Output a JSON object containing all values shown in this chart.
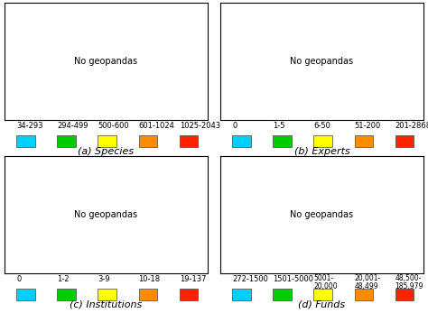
{
  "panels": [
    {
      "label": "(a) Species",
      "legend_labels": [
        "34-293",
        "294-499",
        "500-600",
        "601-1024",
        "1025-2043"
      ],
      "legend_colors": [
        "#00CFFF",
        "#00CC00",
        "#FFFF00",
        "#FF8C00",
        "#FF2200"
      ]
    },
    {
      "label": "(b) Experts",
      "legend_labels": [
        "0",
        "1-5",
        "6-50",
        "51-200",
        "201-2868"
      ],
      "legend_colors": [
        "#00CFFF",
        "#00CC00",
        "#FFFF00",
        "#FF8C00",
        "#FF2200"
      ]
    },
    {
      "label": "(c) Institutions",
      "legend_labels": [
        "0",
        "1-2",
        "3-9",
        "10-18",
        "19-137"
      ],
      "legend_colors": [
        "#00CFFF",
        "#00CC00",
        "#FFFF00",
        "#FF8C00",
        "#FF2200"
      ]
    },
    {
      "label": "(d) Funds",
      "legend_labels": [
        "272-1500",
        "1501-5000",
        "5001-\n20,000",
        "20,001-\n48,499",
        "48,500-\n185,979"
      ],
      "legend_colors": [
        "#00CFFF",
        "#00CC00",
        "#FFFF00",
        "#FF8C00",
        "#FF2200"
      ]
    }
  ],
  "country_colors": {
    "a": {
      "USA": "#FF2200",
      "CAN": "#FF8C00",
      "MEX": "#FF2200",
      "BRA": "#FF2200",
      "ARG": "#FF2200",
      "COL": "#FF2200",
      "PER": "#FF2200",
      "CHL": "#FF2200",
      "VEN": "#FF8C00",
      "BOL": "#FF2200",
      "ECU": "#FF2200",
      "PRY": "#FF8C00",
      "URY": "#FF8C00",
      "GUY": "#FF8C00",
      "SUR": "#FF8C00",
      "GBR": "#FF8C00",
      "FRA": "#FF8C00",
      "DEU": "#FFFF00",
      "ESP": "#FF8C00",
      "ITA": "#FFFF00",
      "POL": "#00CC00",
      "SWE": "#00CC00",
      "NOR": "#00CC00",
      "FIN": "#00CC00",
      "RUS": "#FF8C00",
      "UKR": "#00CC00",
      "ROU": "#00CC00",
      "BLR": "#00CC00",
      "CZE": "#00CC00",
      "AUT": "#00CC00",
      "CHE": "#00CC00",
      "NLD": "#FFFF00",
      "BEL": "#FFFF00",
      "DNK": "#00CC00",
      "PRT": "#FF8C00",
      "GRC": "#00CC00",
      "HUN": "#00CC00",
      "SVK": "#00CC00",
      "BGR": "#00CC00",
      "HRV": "#00CC00",
      "SRB": "#00CC00",
      "BIH": "#00CC00",
      "MKD": "#00CC00",
      "ALB": "#00CC00",
      "SVN": "#00CC00",
      "MDA": "#00CC00",
      "LTU": "#00CC00",
      "LVA": "#00CC00",
      "EST": "#00CC00",
      "IRL": "#00CC00",
      "TUR": "#FFFF00",
      "IRN": "#FF8C00",
      "IRQ": "#FF8C00",
      "SAU": "#FF8C00",
      "YEM": "#FF8C00",
      "SYR": "#FF8C00",
      "JOR": "#FFFF00",
      "ISR": "#FFFF00",
      "LBN": "#FFFF00",
      "ARE": "#FFFF00",
      "KWT": "#FFFF00",
      "QAT": "#FFFF00",
      "OMN": "#FFFF00",
      "AFG": "#FF8C00",
      "PAK": "#FF8C00",
      "IND": "#00CC00",
      "BGD": "#FFFF00",
      "LKA": "#FFFF00",
      "NPL": "#FFFF00",
      "BTN": "#FFFF00",
      "CHN": "#FF2200",
      "JPN": "#FF2200",
      "KOR": "#FF2200",
      "PRK": "#FF8C00",
      "MNG": "#FF8C00",
      "KAZ": "#FF8C00",
      "UZB": "#FF8C00",
      "TKM": "#FF8C00",
      "KGZ": "#FF8C00",
      "TJK": "#FF8C00",
      "AZE": "#FF8C00",
      "GEO": "#FFFF00",
      "ARM": "#FFFF00",
      "IDN": "#FF2200",
      "MYS": "#FF8C00",
      "PHL": "#FF8C00",
      "THA": "#FF8C00",
      "VNM": "#FF8C00",
      "MMR": "#FF8C00",
      "KHM": "#FF8C00",
      "LAO": "#FF8C00",
      "SGP": "#FFFF00",
      "BRN": "#FFFF00",
      "TLS": "#FFFF00",
      "NGA": "#FF8C00",
      "ZAF": "#FF2200",
      "ETH": "#FF8C00",
      "EGY": "#FF8C00",
      "TZA": "#FF8C00",
      "KEN": "#FF8C00",
      "COD": "#FF8C00",
      "AGO": "#FF8C00",
      "MOZ": "#FF8C00",
      "GHA": "#FF8C00",
      "CMR": "#FF8C00",
      "MDG": "#FF8C00",
      "CIV": "#FF8C00",
      "NER": "#FF8C00",
      "BFA": "#FF8C00",
      "MLI": "#FF8C00",
      "SEN": "#FF8C00",
      "SDN": "#FF8C00",
      "SSD": "#FF8C00",
      "TCD": "#FF8C00",
      "CAF": "#FF8C00",
      "COG": "#FF8C00",
      "GAB": "#FF8C00",
      "GNQ": "#FF8C00",
      "ZMB": "#FF8C00",
      "ZWE": "#FF8C00",
      "BWA": "#FF8C00",
      "NAM": "#FF8C00",
      "MWI": "#FFFF00",
      "LSO": "#FFFF00",
      "SWZ": "#FFFF00",
      "RWA": "#FFFF00",
      "BDI": "#FFFF00",
      "UGA": "#FFFF00",
      "TGO": "#FFFF00",
      "BEN": "#FFFF00",
      "GIN": "#FFFF00",
      "SLE": "#FFFF00",
      "LBR": "#FFFF00",
      "DJI": "#FFFF00",
      "SOM": "#FFFF00",
      "ERI": "#FFFF00",
      "LBY": "#FF8C00",
      "TUN": "#FF8C00",
      "DZA": "#FF8C00",
      "MAR": "#FF8C00",
      "MRT": "#FF8C00",
      "AUS": "#FF8C00",
      "NZL": "#00CC00",
      "GRL": "#00CFFF"
    },
    "b": {
      "USA": "#FF2200",
      "CAN": "#FF2200",
      "MEX": "#FF8C00",
      "BRA": "#FF2200",
      "ARG": "#FF8C00",
      "COL": "#FF8C00",
      "PER": "#FF8C00",
      "CHL": "#FF2200",
      "VEN": "#FF8C00",
      "BOL": "#FF8C00",
      "ECU": "#FF8C00",
      "PRY": "#FFFF00",
      "URY": "#FFFF00",
      "GUY": "#FFFF00",
      "SUR": "#FFFF00",
      "GBR": "#FF2200",
      "FRA": "#FF2200",
      "DEU": "#FF2200",
      "ESP": "#FF2200",
      "ITA": "#FF2200",
      "POL": "#FF2200",
      "SWE": "#FF2200",
      "NOR": "#FF2200",
      "FIN": "#FF2200",
      "RUS": "#FF2200",
      "UKR": "#FF8C00",
      "ROU": "#FF8C00",
      "BLR": "#FF8C00",
      "CZE": "#FF8C00",
      "AUT": "#FF2200",
      "CHE": "#FF2200",
      "NLD": "#FF2200",
      "BEL": "#FF2200",
      "DNK": "#FF2200",
      "PRT": "#FF2200",
      "GRC": "#FF8C00",
      "HUN": "#FF8C00",
      "SVK": "#FF8C00",
      "BGR": "#FF8C00",
      "HRV": "#FF8C00",
      "SRB": "#FF8C00",
      "BIH": "#FFFF00",
      "MDA": "#FFFF00",
      "TUR": "#FF8C00",
      "IRN": "#FF8C00",
      "IRQ": "#FFFF00",
      "SAU": "#FF8C00",
      "YEM": "#FFFF00",
      "SYR": "#FFFF00",
      "JOR": "#FFFF00",
      "ISR": "#FF8C00",
      "AFG": "#FFFF00",
      "PAK": "#FFFF00",
      "IND": "#FF2200",
      "BGD": "#FFFF00",
      "LKA": "#FFFF00",
      "NPL": "#FFFF00",
      "CHN": "#FF2200",
      "JPN": "#FF2200",
      "KOR": "#FF2200",
      "PRK": "#FFFF00",
      "MNG": "#FFFF00",
      "KAZ": "#FF8C00",
      "UZB": "#FFFF00",
      "TKM": "#FFFF00",
      "IDN": "#FF2200",
      "MYS": "#FF8C00",
      "PHL": "#FF8C00",
      "THA": "#FF8C00",
      "VNM": "#FF8C00",
      "MMR": "#FFFF00",
      "KHM": "#FFFF00",
      "NGA": "#FF8C00",
      "ZAF": "#FF2200",
      "ETH": "#FFFF00",
      "EGY": "#FF8C00",
      "TZA": "#FFFF00",
      "KEN": "#FFFF00",
      "COD": "#FFFF00",
      "AGO": "#FFFF00",
      "MOZ": "#FFFF00",
      "GHA": "#FFFF00",
      "CMR": "#FFFF00",
      "MDG": "#FFFF00",
      "CIV": "#FFFF00",
      "NER": "#FFFF00",
      "BFA": "#FFFF00",
      "MLI": "#FFFF00",
      "SEN": "#00CC00",
      "SDN": "#FFFF00",
      "SSD": "#FFFF00",
      "TCD": "#FFFF00",
      "ZMB": "#FFFF00",
      "ZWE": "#FFFF00",
      "BWA": "#FFFF00",
      "NAM": "#FFFF00",
      "LBY": "#FFFF00",
      "TUN": "#FFFF00",
      "DZA": "#FFFF00",
      "MAR": "#FFFF00",
      "AUS": "#FF2200",
      "NZL": "#FF2200",
      "GRL": "#00CFFF"
    },
    "c": {
      "USA": "#FF2200",
      "CAN": "#FF2200",
      "MEX": "#FF8C00",
      "BRA": "#FF8C00",
      "ARG": "#FF8C00",
      "COL": "#FF2200",
      "PER": "#FFFF00",
      "CHL": "#FF2200",
      "VEN": "#FF8C00",
      "BOL": "#FFFF00",
      "ECU": "#FFFF00",
      "PRY": "#00CC00",
      "URY": "#00CC00",
      "GUY": "#00CC00",
      "GBR": "#FF2200",
      "FRA": "#FF2200",
      "DEU": "#FF2200",
      "ESP": "#FF2200",
      "ITA": "#FF2200",
      "POL": "#FF8C00",
      "SWE": "#FF2200",
      "NOR": "#FF2200",
      "FIN": "#FF2200",
      "RUS": "#FFFF00",
      "UKR": "#FFFF00",
      "ROU": "#FFFF00",
      "CZE": "#FF8C00",
      "AUT": "#FF8C00",
      "CHE": "#FF8C00",
      "NLD": "#FF2200",
      "BEL": "#FF2200",
      "DNK": "#FF2200",
      "PRT": "#FF2200",
      "GRC": "#FF8C00",
      "HUN": "#FFFF00",
      "BGR": "#FFFF00",
      "TUR": "#FF8C00",
      "IRN": "#FF8C00",
      "IRQ": "#FF8C00",
      "SAU": "#FF8C00",
      "YEM": "#00CC00",
      "SYR": "#00CC00",
      "JOR": "#00CC00",
      "ISR": "#FF8C00",
      "AFG": "#00CC00",
      "PAK": "#FF8C00",
      "IND": "#FF2200",
      "BGD": "#FFFF00",
      "NPL": "#00CC00",
      "CHN": "#FF8C00",
      "JPN": "#FF2200",
      "KOR": "#FF2200",
      "PRK": "#00CC00",
      "MNG": "#00CC00",
      "KAZ": "#FFFF00",
      "UZB": "#FFFF00",
      "TKM": "#00CC00",
      "IDN": "#FF8C00",
      "MYS": "#FF8C00",
      "PHL": "#FF8C00",
      "THA": "#FF8C00",
      "VNM": "#FF8C00",
      "MMR": "#00CC00",
      "KHM": "#00CC00",
      "NGA": "#FFFF00",
      "ZAF": "#FF2200",
      "ETH": "#00CC00",
      "EGY": "#FFFF00",
      "TZA": "#00CC00",
      "KEN": "#00CC00",
      "COD": "#00CC00",
      "AGO": "#00CC00",
      "MOZ": "#00CC00",
      "GHA": "#00CC00",
      "CMR": "#00CC00",
      "MDG": "#00CC00",
      "CIV": "#00CC00",
      "NER": "#00CC00",
      "BFA": "#00CC00",
      "MLI": "#00CC00",
      "SEN": "#00CC00",
      "SDN": "#00CC00",
      "SSD": "#00CC00",
      "TCD": "#00CC00",
      "ZMB": "#00CC00",
      "ZWE": "#00CC00",
      "BWA": "#00CC00",
      "NAM": "#00CC00",
      "LBY": "#00CC00",
      "TUN": "#00CC00",
      "DZA": "#00CC00",
      "MAR": "#FFFF00",
      "AUS": "#FF2200",
      "NZL": "#00CC00",
      "GRL": "#00CFFF"
    },
    "d": {
      "USA": "#FF2200",
      "CAN": "#FF2200",
      "MEX": "#FF8C00",
      "BRA": "#FF2200",
      "ARG": "#FFFF00",
      "COL": "#FFFF00",
      "PER": "#FFFF00",
      "CHL": "#FF8C00",
      "VEN": "#FFFF00",
      "BOL": "#00CFFF",
      "ECU": "#FFFF00",
      "PRY": "#00CFFF",
      "URY": "#00CFFF",
      "GUY": "#00CFFF",
      "GBR": "#FF2200",
      "FRA": "#FF2200",
      "DEU": "#FF2200",
      "ESP": "#FF2200",
      "ITA": "#FF2200",
      "POL": "#FFFF00",
      "SWE": "#FF2200",
      "NOR": "#FF2200",
      "FIN": "#FF2200",
      "RUS": "#00CFFF",
      "UKR": "#00CFFF",
      "ROU": "#00CFFF",
      "CZE": "#FFFF00",
      "AUT": "#FF2200",
      "CHE": "#FF2200",
      "NLD": "#FF2200",
      "BEL": "#FF2200",
      "DNK": "#FF2200",
      "PRT": "#FF2200",
      "GRC": "#FFFF00",
      "HUN": "#FFFF00",
      "BGR": "#00CFFF",
      "TUR": "#FFFF00",
      "IRN": "#FF8C00",
      "IRQ": "#FFFF00",
      "SAU": "#FF8C00",
      "YEM": "#00CFFF",
      "SYR": "#00CFFF",
      "JOR": "#00CFFF",
      "ISR": "#FF2200",
      "AFG": "#00CFFF",
      "PAK": "#FFFF00",
      "IND": "#FF8C00",
      "BGD": "#00CFFF",
      "NPL": "#00CFFF",
      "CHN": "#FFFF00",
      "JPN": "#FF2200",
      "KOR": "#FF2200",
      "PRK": "#00CFFF",
      "MNG": "#00CFFF",
      "KAZ": "#00CFFF",
      "UZB": "#00CFFF",
      "TKM": "#00CFFF",
      "IDN": "#FFFF00",
      "MYS": "#FF8C00",
      "PHL": "#FFFF00",
      "THA": "#FFFF00",
      "VNM": "#FFFF00",
      "MMR": "#00CFFF",
      "KHM": "#00CFFF",
      "NGA": "#FFFF00",
      "ZAF": "#FF2200",
      "ETH": "#00CFFF",
      "EGY": "#FFFF00",
      "TZA": "#00CFFF",
      "KEN": "#00CFFF",
      "COD": "#00CFFF",
      "AGO": "#00CFFF",
      "MOZ": "#00CFFF",
      "GHA": "#00CFFF",
      "CMR": "#00CFFF",
      "MDG": "#00CFFF",
      "CIV": "#00CFFF",
      "NER": "#00CFFF",
      "BFA": "#00CFFF",
      "MLI": "#00CFFF",
      "SEN": "#00CC00",
      "SDN": "#00CFFF",
      "SSD": "#00CFFF",
      "TCD": "#00CFFF",
      "ZMB": "#00CFFF",
      "ZWE": "#00CFFF",
      "BWA": "#00CFFF",
      "NAM": "#00CFFF",
      "LBY": "#00CFFF",
      "TUN": "#00CFFF",
      "DZA": "#FFFF00",
      "MAR": "#FFFF00",
      "AUS": "#FF2200",
      "NZL": "#FFFF00",
      "GRL": "#00CFFF"
    }
  },
  "fig_bg": "#FFFFFF",
  "label_fontsize": 8,
  "legend_fontsize": 6,
  "border_color": "#AAAAAA",
  "default_country_color": "#D0D0D0",
  "ocean_color": "#FFFFFF",
  "map_bg_color": "#F5F5F5"
}
